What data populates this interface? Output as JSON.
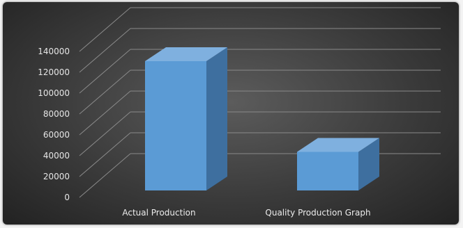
{
  "chart_data": {
    "type": "bar",
    "style": "3d-clustered-column",
    "categories": [
      "Actual Production",
      "Quality Production Graph"
    ],
    "values": [
      124000,
      37000
    ],
    "ylim": [
      0,
      140000
    ],
    "y_ticks": [
      "0",
      "20000",
      "40000",
      "60000",
      "80000",
      "100000",
      "120000",
      "140000"
    ],
    "grid": true,
    "legend": "none",
    "colors": {
      "bar_front": "#5b9bd5",
      "bar_side": "#3e6f9f",
      "bar_top": "#7fb0df",
      "background": "#3b3b3b",
      "gridline": "#8a8a8a"
    }
  }
}
